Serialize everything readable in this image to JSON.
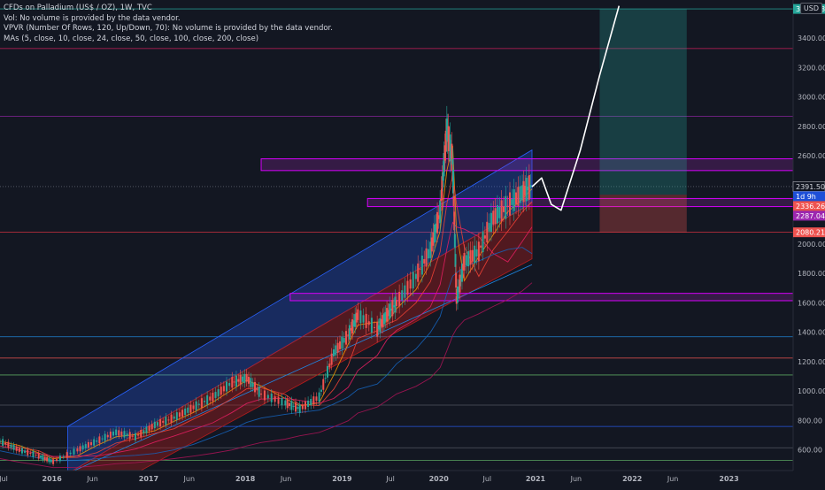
{
  "legend": {
    "title": "CFDs on Palladium (US$ / OZ), 1W, TVC",
    "volume_line": "Vol: No volume is provided by the data vendor.",
    "vpvr_line": "VPVR (Number Of Rows, 120, Up/Down, 70): No volume is provided by the data vendor.",
    "mas_line": "MAs (5, close, 10, close, 24, close, 50, close, 100, close, 200, close)"
  },
  "currency_label": "USD",
  "colors": {
    "background": "#131722",
    "price_line": "#ffffff",
    "up": "#26a69a",
    "down": "#ef5350",
    "channel_upper": "#2962ff",
    "channel_lower": "#b71c1c",
    "zone": "#9c27b0"
  },
  "chart_data": {
    "type": "line",
    "title": "CFDs on Palladium (US$ / OZ), 1W, TVC",
    "xlim": [
      2015.5,
      2023.7
    ],
    "ylim": [
      460,
      3660
    ],
    "y_ticks": [
      600,
      800,
      1000,
      1200,
      1400,
      1600,
      1800,
      2000,
      2200,
      2400,
      2600,
      2800,
      3000,
      3200,
      3400
    ],
    "x_ticks": [
      {
        "x": 2015.5,
        "label": "Jul"
      },
      {
        "x": 2016.0,
        "label": "2016"
      },
      {
        "x": 2016.42,
        "label": "Jun"
      },
      {
        "x": 2017.0,
        "label": "2017"
      },
      {
        "x": 2017.42,
        "label": "Jun"
      },
      {
        "x": 2018.0,
        "label": "2018"
      },
      {
        "x": 2018.42,
        "label": "Jun"
      },
      {
        "x": 2019.0,
        "label": "2019"
      },
      {
        "x": 2019.5,
        "label": "Jul"
      },
      {
        "x": 2020.0,
        "label": "2020"
      },
      {
        "x": 2020.5,
        "label": "Jul"
      },
      {
        "x": 2021.0,
        "label": "2021"
      },
      {
        "x": 2021.42,
        "label": "Jun"
      },
      {
        "x": 2022.0,
        "label": "2022"
      },
      {
        "x": 2022.42,
        "label": "Jun"
      },
      {
        "x": 2023.0,
        "label": "2023"
      }
    ],
    "series": [
      {
        "x": [
          2015.5,
          2015.7,
          2015.9,
          2016.05,
          2016.3,
          2016.5,
          2016.7,
          2016.9,
          2017.1,
          2017.3,
          2017.5,
          2017.7,
          2017.9,
          2018.05,
          2018.2,
          2018.45,
          2018.6,
          2018.8,
          2018.95,
          2019.1,
          2019.2,
          2019.4,
          2019.5,
          2019.6,
          2019.8,
          2019.95,
          2020.05,
          2020.12,
          2020.18,
          2020.22,
          2020.3,
          2020.45,
          2020.6,
          2020.75,
          2020.9,
          2021.0
        ],
        "y": [
          660,
          600,
          560,
          520,
          600,
          660,
          720,
          690,
          770,
          820,
          890,
          960,
          1060,
          1090,
          980,
          920,
          880,
          960,
          1260,
          1380,
          1520,
          1420,
          1520,
          1600,
          1780,
          1960,
          2220,
          2780,
          2560,
          1620,
          1880,
          1950,
          2180,
          2260,
          2350,
          2400
        ]
      },
      {
        "x": [
          2021.0,
          2021.1,
          2021.2,
          2021.3,
          2021.5,
          2021.7,
          2021.9
        ],
        "y": [
          2390,
          2450,
          2270,
          2230,
          2640,
          3150,
          3620
        ]
      }
    ],
    "price_labels": [
      {
        "value": 3599.38,
        "label": "3599.38",
        "color": "#26a69a"
      },
      {
        "value": 2391.5,
        "label": "2391.50",
        "color": "#131722"
      },
      {
        "value": 2336.26,
        "label": "1d 9h",
        "color": "#1e4fd8"
      },
      {
        "value": 2336.26,
        "label": "2336.26",
        "color": "#ef5350"
      },
      {
        "value": 2287.04,
        "label": "2287.04",
        "color": "#9c27b0"
      },
      {
        "value": 2080.21,
        "label": "2080.21",
        "color": "#ef5350"
      }
    ],
    "grid": false,
    "legend_position": "top-left"
  }
}
